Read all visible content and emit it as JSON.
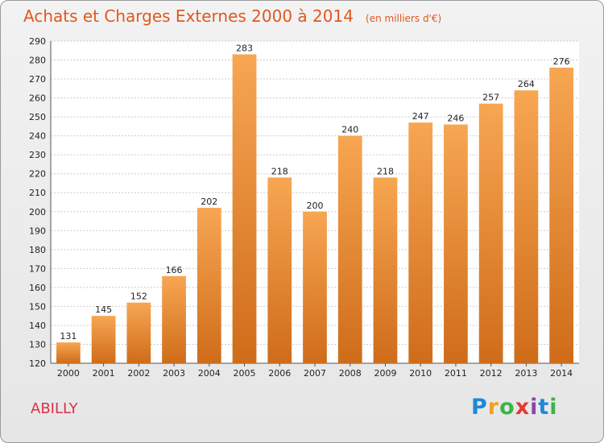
{
  "header": {
    "title": "Achats et Charges Externes 2000 à 2014",
    "unit": "(en milliers d'€)"
  },
  "footer": {
    "town": "ABILLY",
    "logo": {
      "letters": [
        "P",
        "r",
        "o",
        "x",
        "i",
        "t",
        "i"
      ],
      "colors": [
        "#1e88d9",
        "#f0a020",
        "#3cb44a",
        "#e53935",
        "#8e44ad",
        "#1e88d9",
        "#3cb44a"
      ]
    }
  },
  "colors": {
    "bar_light": "#f7a652",
    "bar_dark": "#cf6c1a",
    "grid": "#cccccc",
    "axis": "#555555",
    "text": "#222222"
  },
  "chart_data": {
    "type": "bar",
    "categories": [
      "2000",
      "2001",
      "2002",
      "2003",
      "2004",
      "2005",
      "2006",
      "2007",
      "2008",
      "2009",
      "2010",
      "2011",
      "2012",
      "2013",
      "2014"
    ],
    "values": [
      131,
      145,
      152,
      166,
      202,
      283,
      218,
      200,
      240,
      218,
      247,
      246,
      257,
      264,
      276
    ],
    "ylim": [
      120,
      290
    ],
    "ytick_step": 10,
    "grid": true,
    "legend": "none"
  }
}
